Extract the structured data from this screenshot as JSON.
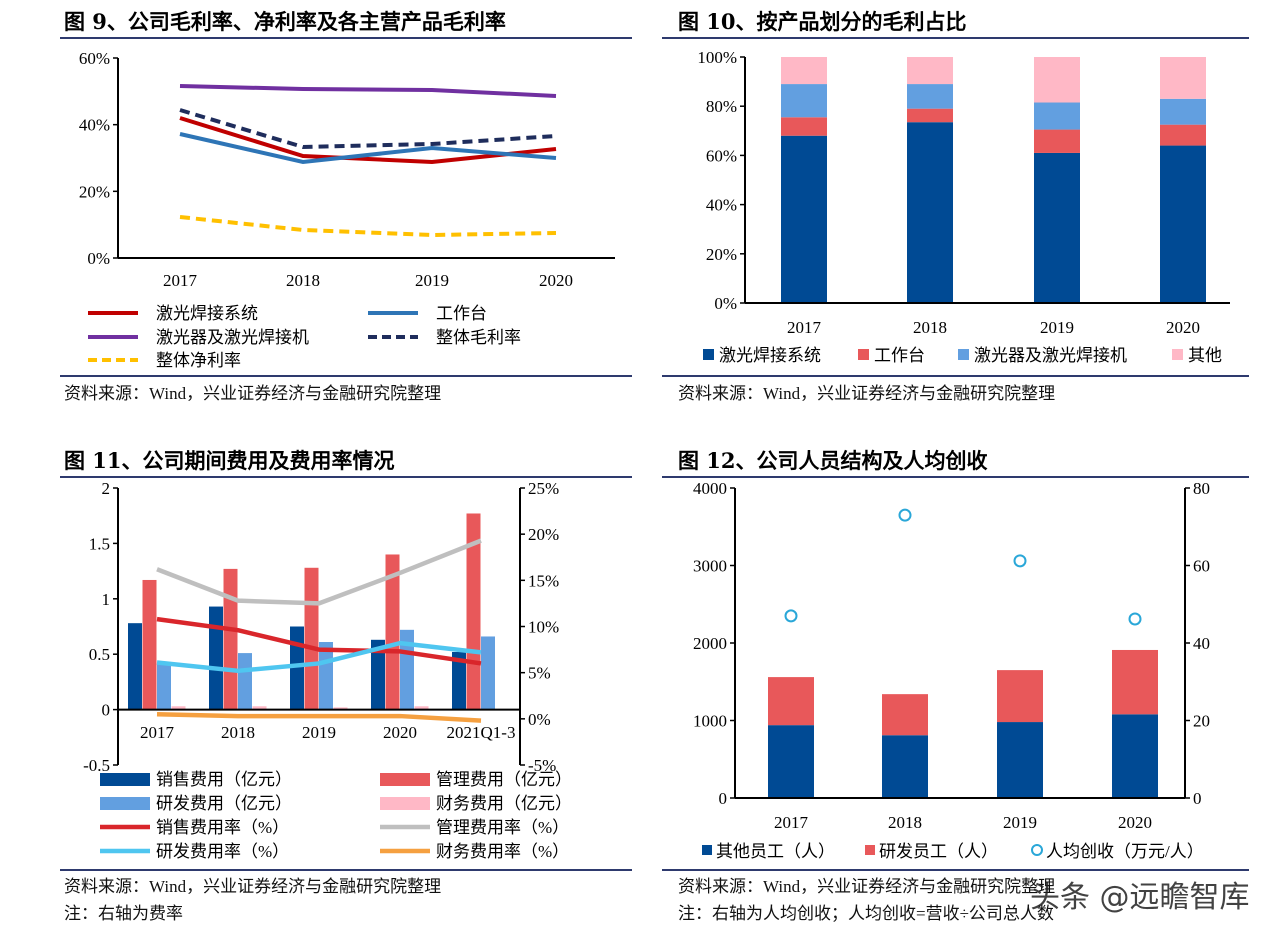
{
  "panels": [
    {
      "title": "图 9、公司毛利率、净利率及各主营产品毛利率",
      "source": "资料来源：Wind，兴业证券经济与金融研究院整理"
    },
    {
      "title": "图 10、按产品划分的毛利占比",
      "source": "资料来源：Wind，兴业证券经济与金融研究院整理"
    },
    {
      "title": "图 11、公司期间费用及费用率情况",
      "source": "资料来源：Wind，兴业证券经济与金融研究院整理",
      "note": "注：右轴为费率"
    },
    {
      "title": "图 12、公司人员结构及人均创收",
      "source": "资料来源：Wind，兴业证券经济与金融研究院整理",
      "note": "注：右轴为人均创收；人均创收=营收÷公司总人数"
    }
  ],
  "watermark": "头条 @远瞻智库",
  "chart_data": [
    {
      "type": "line",
      "categories": [
        "2017",
        "2018",
        "2019",
        "2020"
      ],
      "ylim": [
        0,
        60
      ],
      "yticks": [
        "0%",
        "20%",
        "40%",
        "60%"
      ],
      "grid": false,
      "legend": "bottom",
      "series": [
        {
          "name": "激光焊接系统",
          "values": [
            42,
            30.6,
            28.8,
            32.7
          ],
          "color": "#c00000",
          "dash": false
        },
        {
          "name": "工作台",
          "values": [
            37.2,
            28.8,
            33,
            30
          ],
          "color": "#2e75b6",
          "dash": false
        },
        {
          "name": "激光器及激光焊接机",
          "values": [
            51.6,
            50.7,
            50.4,
            48.6
          ],
          "color": "#7030a0",
          "dash": false
        },
        {
          "name": "整体毛利率",
          "values": [
            44.4,
            33.3,
            34.2,
            36.6
          ],
          "color": "#1f2d5c",
          "dash": true
        },
        {
          "name": "整体净利率",
          "values": [
            12.3,
            8.4,
            6.9,
            7.5
          ],
          "color": "#ffc000",
          "dash": true
        }
      ]
    },
    {
      "type": "bar",
      "stacked": true,
      "categories": [
        "2017",
        "2018",
        "2019",
        "2020"
      ],
      "ylim": [
        0,
        100
      ],
      "yticks": [
        "0%",
        "20%",
        "40%",
        "60%",
        "80%",
        "100%"
      ],
      "grid": false,
      "legend": "bottom",
      "series": [
        {
          "name": "激光焊接系统",
          "values": [
            68,
            73.5,
            61,
            64
          ],
          "color": "#004a94"
        },
        {
          "name": "工作台",
          "values": [
            7.5,
            5.5,
            9.5,
            8.5
          ],
          "color": "#e8585a"
        },
        {
          "name": "激光器及激光焊接机",
          "values": [
            13.5,
            10,
            11,
            10.5
          ],
          "color": "#629fe0"
        },
        {
          "name": "其他",
          "values": [
            11,
            11,
            18.5,
            17
          ],
          "color": "#ffb8c6"
        }
      ]
    },
    {
      "type": "bar",
      "categories": [
        "2017",
        "2018",
        "2019",
        "2020",
        "2021Q1-3"
      ],
      "ylim": [
        -0.5,
        2
      ],
      "yticks": [
        "-0.5",
        "0",
        "0.5",
        "1",
        "1.5",
        "2"
      ],
      "y2lim": [
        -5,
        25
      ],
      "y2ticks": [
        "-5%",
        "0%",
        "5%",
        "10%",
        "15%",
        "20%",
        "25%"
      ],
      "grid": false,
      "legend": "bottom",
      "bars": [
        {
          "name": "销售费用（亿元）",
          "values": [
            0.78,
            0.93,
            0.75,
            0.63,
            0.52
          ],
          "color": "#004a94"
        },
        {
          "name": "管理费用（亿元）",
          "values": [
            1.17,
            1.27,
            1.28,
            1.4,
            1.77
          ],
          "color": "#e8585a"
        },
        {
          "name": "研发费用（亿元）",
          "values": [
            0.43,
            0.51,
            0.61,
            0.72,
            0.66
          ],
          "color": "#629fe0"
        },
        {
          "name": "财务费用（亿元）",
          "values": [
            0.03,
            0.03,
            0.02,
            0.03,
            0
          ],
          "color": "#ffb8c6"
        }
      ],
      "lines": [
        {
          "name": "销售费用率（%）",
          "values": [
            10.8,
            9.6,
            7.5,
            7.3,
            6.0
          ],
          "color": "#d9262b"
        },
        {
          "name": "管理费用率（%）",
          "values": [
            16.2,
            12.8,
            12.5,
            15.8,
            19.3
          ],
          "color": "#bfbfbf"
        },
        {
          "name": "研发费用率（%）",
          "values": [
            6.1,
            5.2,
            6.0,
            8.2,
            7.2
          ],
          "color": "#4fc6f0"
        },
        {
          "name": "财务费用率（%）",
          "values": [
            0.5,
            0.3,
            0.3,
            0.3,
            -0.2
          ],
          "color": "#f5a040"
        }
      ]
    },
    {
      "type": "bar",
      "stacked": true,
      "categories": [
        "2017",
        "2018",
        "2019",
        "2020"
      ],
      "ylim": [
        0,
        4000
      ],
      "yticks": [
        "0",
        "1000",
        "2000",
        "3000",
        "4000"
      ],
      "y2lim": [
        0,
        80
      ],
      "y2ticks": [
        "0",
        "20",
        "40",
        "60",
        "80"
      ],
      "grid": false,
      "legend": "bottom",
      "bars": [
        {
          "name": "其他员工（人）",
          "values": [
            940,
            810,
            980,
            1080
          ],
          "color": "#004a94"
        },
        {
          "name": "研发员工（人）",
          "values": [
            620,
            530,
            670,
            830
          ],
          "color": "#e8585a"
        }
      ],
      "scatter": {
        "name": "人均创收（万元/人）",
        "values": [
          47,
          73,
          61.2,
          46.2
        ],
        "color": "#2aa7d8"
      }
    }
  ]
}
